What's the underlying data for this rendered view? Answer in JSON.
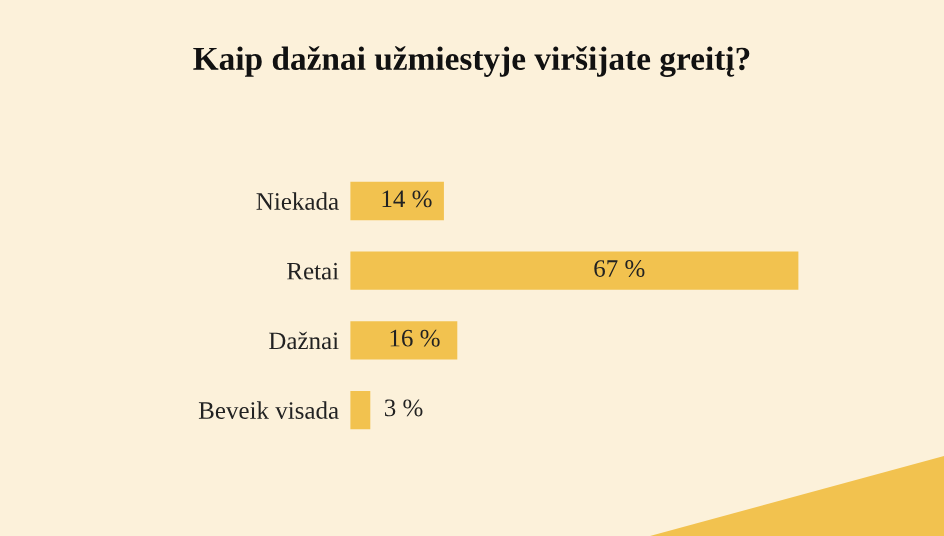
{
  "chart_data": {
    "type": "bar",
    "orientation": "horizontal",
    "title": "Kaip dažnai užmiestyje viršijate greitį?",
    "categories": [
      "Niekada",
      "Retai",
      "Dažnai",
      "Beveik visada"
    ],
    "values": [
      14,
      67,
      16,
      3
    ],
    "color": "#f2c24f",
    "value_labels": [
      "14 %",
      "67 %",
      "16 %",
      "3 %"
    ]
  }
}
